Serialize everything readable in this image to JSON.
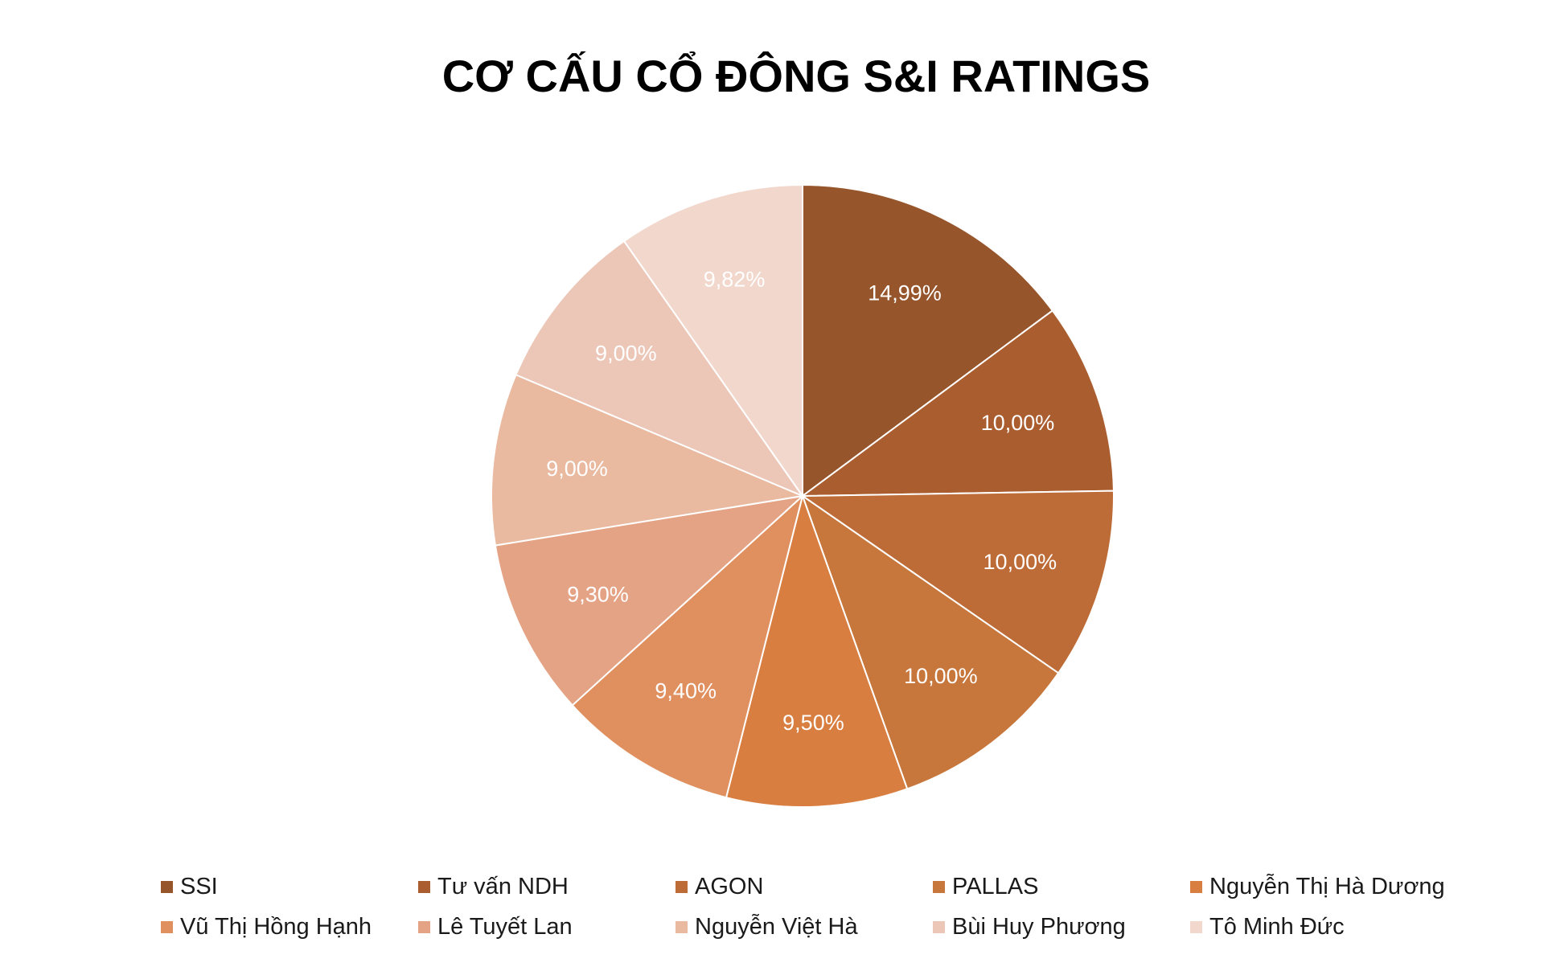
{
  "chart_data": {
    "type": "pie",
    "title": "CƠ CẤU CỔ ĐÔNG S&I RATINGS",
    "categories": [
      "SSI",
      "Tư vấn NDH",
      "AGON",
      "PALLAS",
      "Nguyễn Thị Hà Dương",
      "Vũ Thị Hồng Hạnh",
      "Lê Tuyết Lan",
      "Nguyễn Việt Hà",
      "Bùi Huy Phương",
      "Tô Minh Đức"
    ],
    "values": [
      14.99,
      10.0,
      10.0,
      10.0,
      9.5,
      9.4,
      9.3,
      9.0,
      9.0,
      9.82
    ],
    "labels": [
      "14,99%",
      "10,00%",
      "10,00%",
      "10,00%",
      "9,50%",
      "9,40%",
      "9,30%",
      "9,00%",
      "9,00%",
      "9,82%"
    ],
    "colors": [
      "#97552b",
      "#aa5e30",
      "#bd6c37",
      "#c7773c",
      "#d87e40",
      "#e08f5e",
      "#e5a385",
      "#e9b9a0",
      "#ecc7b8",
      "#f2d7cc"
    ],
    "legend_position": "bottom",
    "start_angle_deg": 0,
    "direction": "clockwise"
  }
}
